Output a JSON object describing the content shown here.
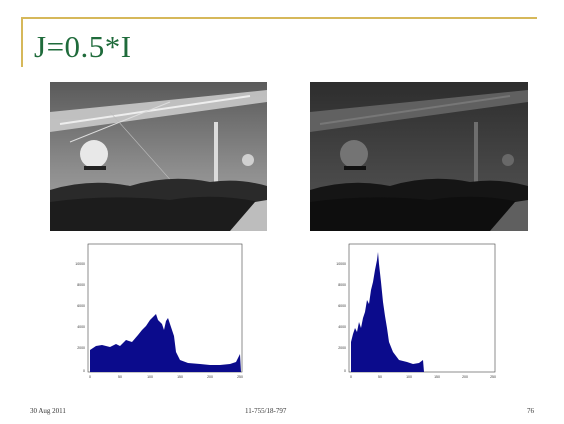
{
  "slide": {
    "title": "J=0.5*I",
    "footer_date": "30 Aug 2011",
    "footer_course": "11-755/18-797",
    "page_number": "76"
  },
  "histograms": {
    "left": {
      "y_ticks": [
        "10000",
        "8000",
        "6000",
        "4000",
        "2000",
        "0"
      ],
      "x_ticks": [
        "0",
        "50",
        "100",
        "150",
        "200",
        "250"
      ]
    },
    "right": {
      "y_ticks": [
        "10000",
        "8000",
        "6000",
        "4000",
        "2000",
        "0"
      ],
      "x_ticks": [
        "0",
        "50",
        "100",
        "150",
        "200",
        "250"
      ]
    }
  },
  "colors": {
    "accent_line": "#d6b85a",
    "title": "#1f6b3b",
    "histogram_fill": "#0b0b8c"
  }
}
